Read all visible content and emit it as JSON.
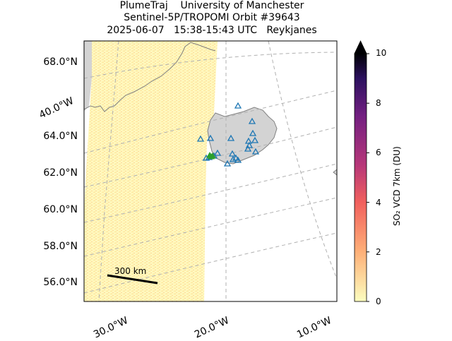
{
  "title": {
    "line1": "PlumeTraj    University of Manchester",
    "line2": "Sentinel-5P/TROPOMI Orbit #39643",
    "line3": "2025-06-07   15:38-15:43 UTC   Reykjanes"
  },
  "lat_labels": [
    "68.0°N",
    "64.0°N",
    "62.0°N",
    "60.0°N",
    "58.0°N",
    "56.0°N"
  ],
  "lon_labels": [
    "40.0°W",
    "30.0°W",
    "20.0°W",
    "10.0°W"
  ],
  "scale_bar": {
    "label": "300 km"
  },
  "colorbar": {
    "label": "SO₂ VCD 7km (DU)",
    "ticks": [
      "0",
      "2",
      "4",
      "6",
      "8",
      "10"
    ],
    "min": 0,
    "max": 10,
    "extend": "max",
    "colormap": "magma_r"
  },
  "colors": {
    "swath_base": "#fff8bd",
    "land": "#d3d3d3",
    "coast": "#808080",
    "volcano_marker": "#1f77b4",
    "source_marker": "#2ca02c",
    "gridline": "#b0b0b0"
  },
  "map_extent": {
    "lon": [
      -35,
      -10
    ],
    "lat": [
      55,
      69
    ]
  }
}
